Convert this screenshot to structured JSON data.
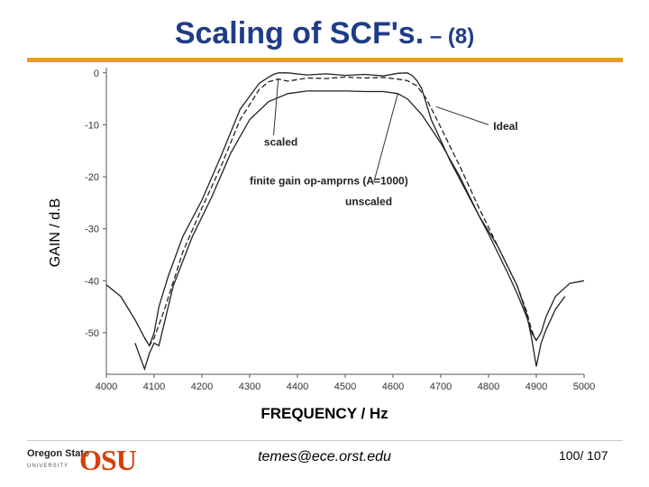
{
  "slide": {
    "title": "Scaling of SCF's.",
    "title_suffix": " – (8)",
    "email": "temes@ece.orst.edu",
    "page": "100/ 107",
    "logo_line1": "Oregon State",
    "logo_line2": "UNIVERSITY",
    "logo_mark": "OSU",
    "accent_color": "#e8a020",
    "title_color": "#1f3c88",
    "logo_color": "#d73f09"
  },
  "chart_data": {
    "type": "line",
    "title": "",
    "xlabel": "FREQUENCY / Hz",
    "ylabel": "GAIN / d.B",
    "xlim": [
      4000,
      5000
    ],
    "ylim": [
      -58,
      1
    ],
    "x_ticks": [
      4000,
      4100,
      4200,
      4300,
      4400,
      4500,
      4600,
      4700,
      4800,
      4900,
      5000
    ],
    "y_ticks": [
      0,
      -10,
      -20,
      -30,
      -40,
      -50
    ],
    "grid": false,
    "series": [
      {
        "name": "Ideal",
        "style": "solid",
        "x": [
          4000,
          4030,
          4060,
          4080,
          4090,
          4100,
          4110,
          4130,
          4160,
          4200,
          4240,
          4280,
          4320,
          4340,
          4350,
          4360,
          4380,
          4420,
          4460,
          4500,
          4540,
          4580,
          4610,
          4630,
          4640,
          4650,
          4660,
          4680,
          4720,
          4760,
          4800,
          4840,
          4860,
          4880,
          4890,
          4900,
          4910,
          4920,
          4940,
          4970,
          5000
        ],
        "y": [
          -40.8,
          -43,
          -47.5,
          -51,
          -52.5,
          -50,
          -45,
          -39,
          -31.5,
          -24.5,
          -16,
          -7,
          -2,
          -0.8,
          -0.3,
          0,
          0,
          -0.4,
          -0.2,
          -0.5,
          -0.3,
          -0.6,
          -0.1,
          0,
          -0.5,
          -1.5,
          -3,
          -9,
          -17,
          -24,
          -31,
          -38.5,
          -42.5,
          -47,
          -50,
          -51.5,
          -50,
          -47,
          -43,
          -40.5,
          -40
        ]
      },
      {
        "name": "scaled",
        "style": "dashed",
        "x": [
          4080,
          4090,
          4100,
          4120,
          4160,
          4200,
          4240,
          4280,
          4320,
          4340,
          4360,
          4380,
          4420,
          4460,
          4500,
          4540,
          4580,
          4610,
          4630,
          4650,
          4670,
          4700,
          4740,
          4780,
          4820,
          4860,
          4880,
          4890,
          4900
        ],
        "y": [
          -51,
          -52.5,
          -51,
          -46,
          -34.5,
          -26,
          -18,
          -9,
          -3.2,
          -1.7,
          -1.2,
          -1.6,
          -1,
          -1.1,
          -0.8,
          -1,
          -0.9,
          -1.2,
          -1.5,
          -2.5,
          -5,
          -10.5,
          -18,
          -26,
          -33.5,
          -41,
          -46,
          -49.5,
          -51.5
        ]
      },
      {
        "name": "finite gain op-amprns (A=1000) unscaled",
        "style": "solid",
        "x": [
          4060,
          4080,
          4090,
          4100,
          4110,
          4140,
          4180,
          4220,
          4260,
          4300,
          4340,
          4380,
          4420,
          4460,
          4500,
          4540,
          4580,
          4610,
          4630,
          4660,
          4700,
          4740,
          4780,
          4820,
          4860,
          4880,
          4890,
          4900,
          4910,
          4920,
          4940,
          4960
        ],
        "y": [
          -52,
          -57,
          -54,
          -52,
          -52.5,
          -41,
          -31.5,
          -24,
          -15.5,
          -9,
          -5.5,
          -4,
          -3.5,
          -3.5,
          -3.5,
          -3.6,
          -3.6,
          -4,
          -5,
          -8,
          -13.5,
          -20,
          -27.5,
          -33.5,
          -41,
          -46.5,
          -51,
          -56.5,
          -52,
          -49.5,
          -45.5,
          -43
        ]
      }
    ],
    "annotations": [
      "scaled",
      "Ideal",
      "finite gain op-amprns (A=1000)",
      "unscaled"
    ]
  }
}
